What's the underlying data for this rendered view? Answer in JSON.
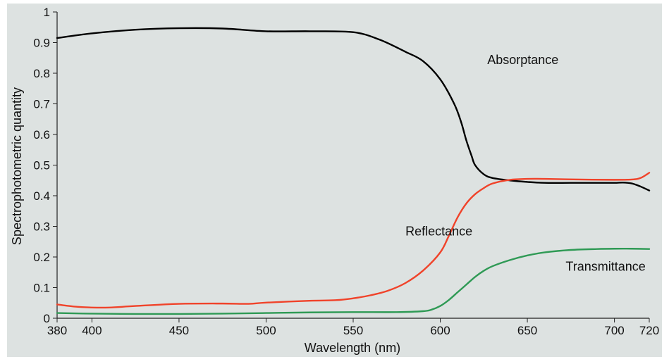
{
  "chart_data": {
    "type": "line",
    "title": "",
    "xlabel": "Wavelength (nm)",
    "ylabel": "Spectrophotometric quantity",
    "xlim": [
      380,
      720
    ],
    "ylim": [
      0,
      1
    ],
    "xticks": [
      380,
      400,
      450,
      500,
      550,
      600,
      650,
      700,
      720
    ],
    "yticks": [
      0,
      0.1,
      0.2,
      0.3,
      0.4,
      0.5,
      0.6,
      0.7,
      0.8,
      0.9,
      1
    ],
    "xtick_labels": [
      "380",
      "400",
      "450",
      "500",
      "550",
      "600",
      "650",
      "700",
      "720"
    ],
    "ytick_labels": [
      "0",
      "0.1",
      "0.2",
      "0.3",
      "0.4",
      "0.5",
      "0.6",
      "0.7",
      "0.8",
      "0.9",
      "1"
    ],
    "grid": false,
    "background_color": "#dde2e1",
    "series": [
      {
        "name": "Absorptance",
        "color": "#000000",
        "x": [
          380,
          400,
          425,
          450,
          475,
          500,
          525,
          550,
          565,
          580,
          590,
          600,
          608,
          612,
          615,
          618,
          620,
          625,
          630,
          640,
          650,
          660,
          675,
          690,
          700,
          705,
          710,
          715,
          720
        ],
        "y": [
          0.915,
          0.93,
          0.942,
          0.947,
          0.946,
          0.937,
          0.937,
          0.934,
          0.91,
          0.87,
          0.84,
          0.78,
          0.7,
          0.64,
          0.58,
          0.53,
          0.5,
          0.47,
          0.458,
          0.45,
          0.445,
          0.442,
          0.442,
          0.442,
          0.442,
          0.443,
          0.44,
          0.43,
          0.417
        ]
      },
      {
        "name": "Reflectance",
        "color": "#f0432a",
        "x": [
          380,
          390,
          400,
          410,
          425,
          450,
          475,
          490,
          500,
          525,
          540,
          550,
          560,
          570,
          580,
          590,
          600,
          605,
          610,
          615,
          620,
          625,
          630,
          640,
          650,
          660,
          680,
          700,
          710,
          715,
          720
        ],
        "y": [
          0.045,
          0.038,
          0.035,
          0.035,
          0.04,
          0.047,
          0.048,
          0.047,
          0.051,
          0.057,
          0.059,
          0.065,
          0.075,
          0.09,
          0.115,
          0.155,
          0.215,
          0.27,
          0.33,
          0.375,
          0.405,
          0.425,
          0.44,
          0.452,
          0.455,
          0.455,
          0.453,
          0.452,
          0.453,
          0.458,
          0.475
        ]
      },
      {
        "name": "Transmittance",
        "color": "#2f9a55",
        "x": [
          380,
          400,
          425,
          450,
          475,
          500,
          525,
          550,
          575,
          590,
          595,
          600,
          605,
          610,
          615,
          620,
          625,
          630,
          640,
          650,
          660,
          675,
          690,
          700,
          710,
          720
        ],
        "y": [
          0.017,
          0.015,
          0.014,
          0.014,
          0.015,
          0.017,
          0.019,
          0.02,
          0.02,
          0.023,
          0.028,
          0.04,
          0.06,
          0.085,
          0.11,
          0.135,
          0.155,
          0.17,
          0.19,
          0.205,
          0.215,
          0.223,
          0.226,
          0.227,
          0.227,
          0.226
        ]
      }
    ],
    "annotations": [
      {
        "text": "Absorptance",
        "x": 627,
        "y": 0.83
      },
      {
        "text": "Reflectance",
        "x": 580,
        "y": 0.27
      },
      {
        "text": "Transmittance",
        "x": 672,
        "y": 0.155
      }
    ]
  }
}
